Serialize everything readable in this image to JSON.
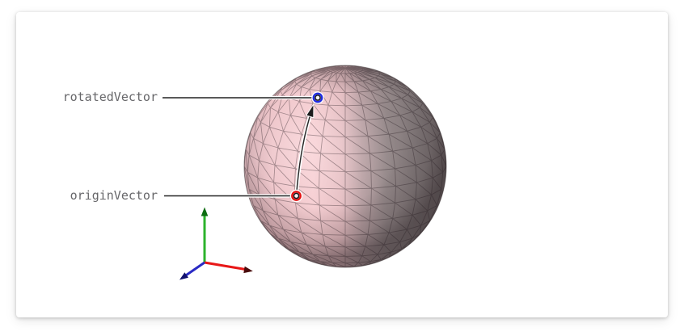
{
  "figure": {
    "title": "sphere-rotation-figure",
    "annotations": [
      {
        "label": "rotatedVector",
        "point_color": "#1f2ae0"
      },
      {
        "label": "originVector",
        "point_color": "#e51212"
      }
    ],
    "axes_gizmo": [
      {
        "axis": "x",
        "color": "#e81717"
      },
      {
        "axis": "y",
        "color": "#2cb32c"
      },
      {
        "axis": "z",
        "color": "#2a2ac4"
      }
    ],
    "sphere_colors": {
      "lit_front": "#f4c9cd",
      "shaded_back": "#756c6d"
    },
    "arc_color": "#2a2a2a"
  }
}
